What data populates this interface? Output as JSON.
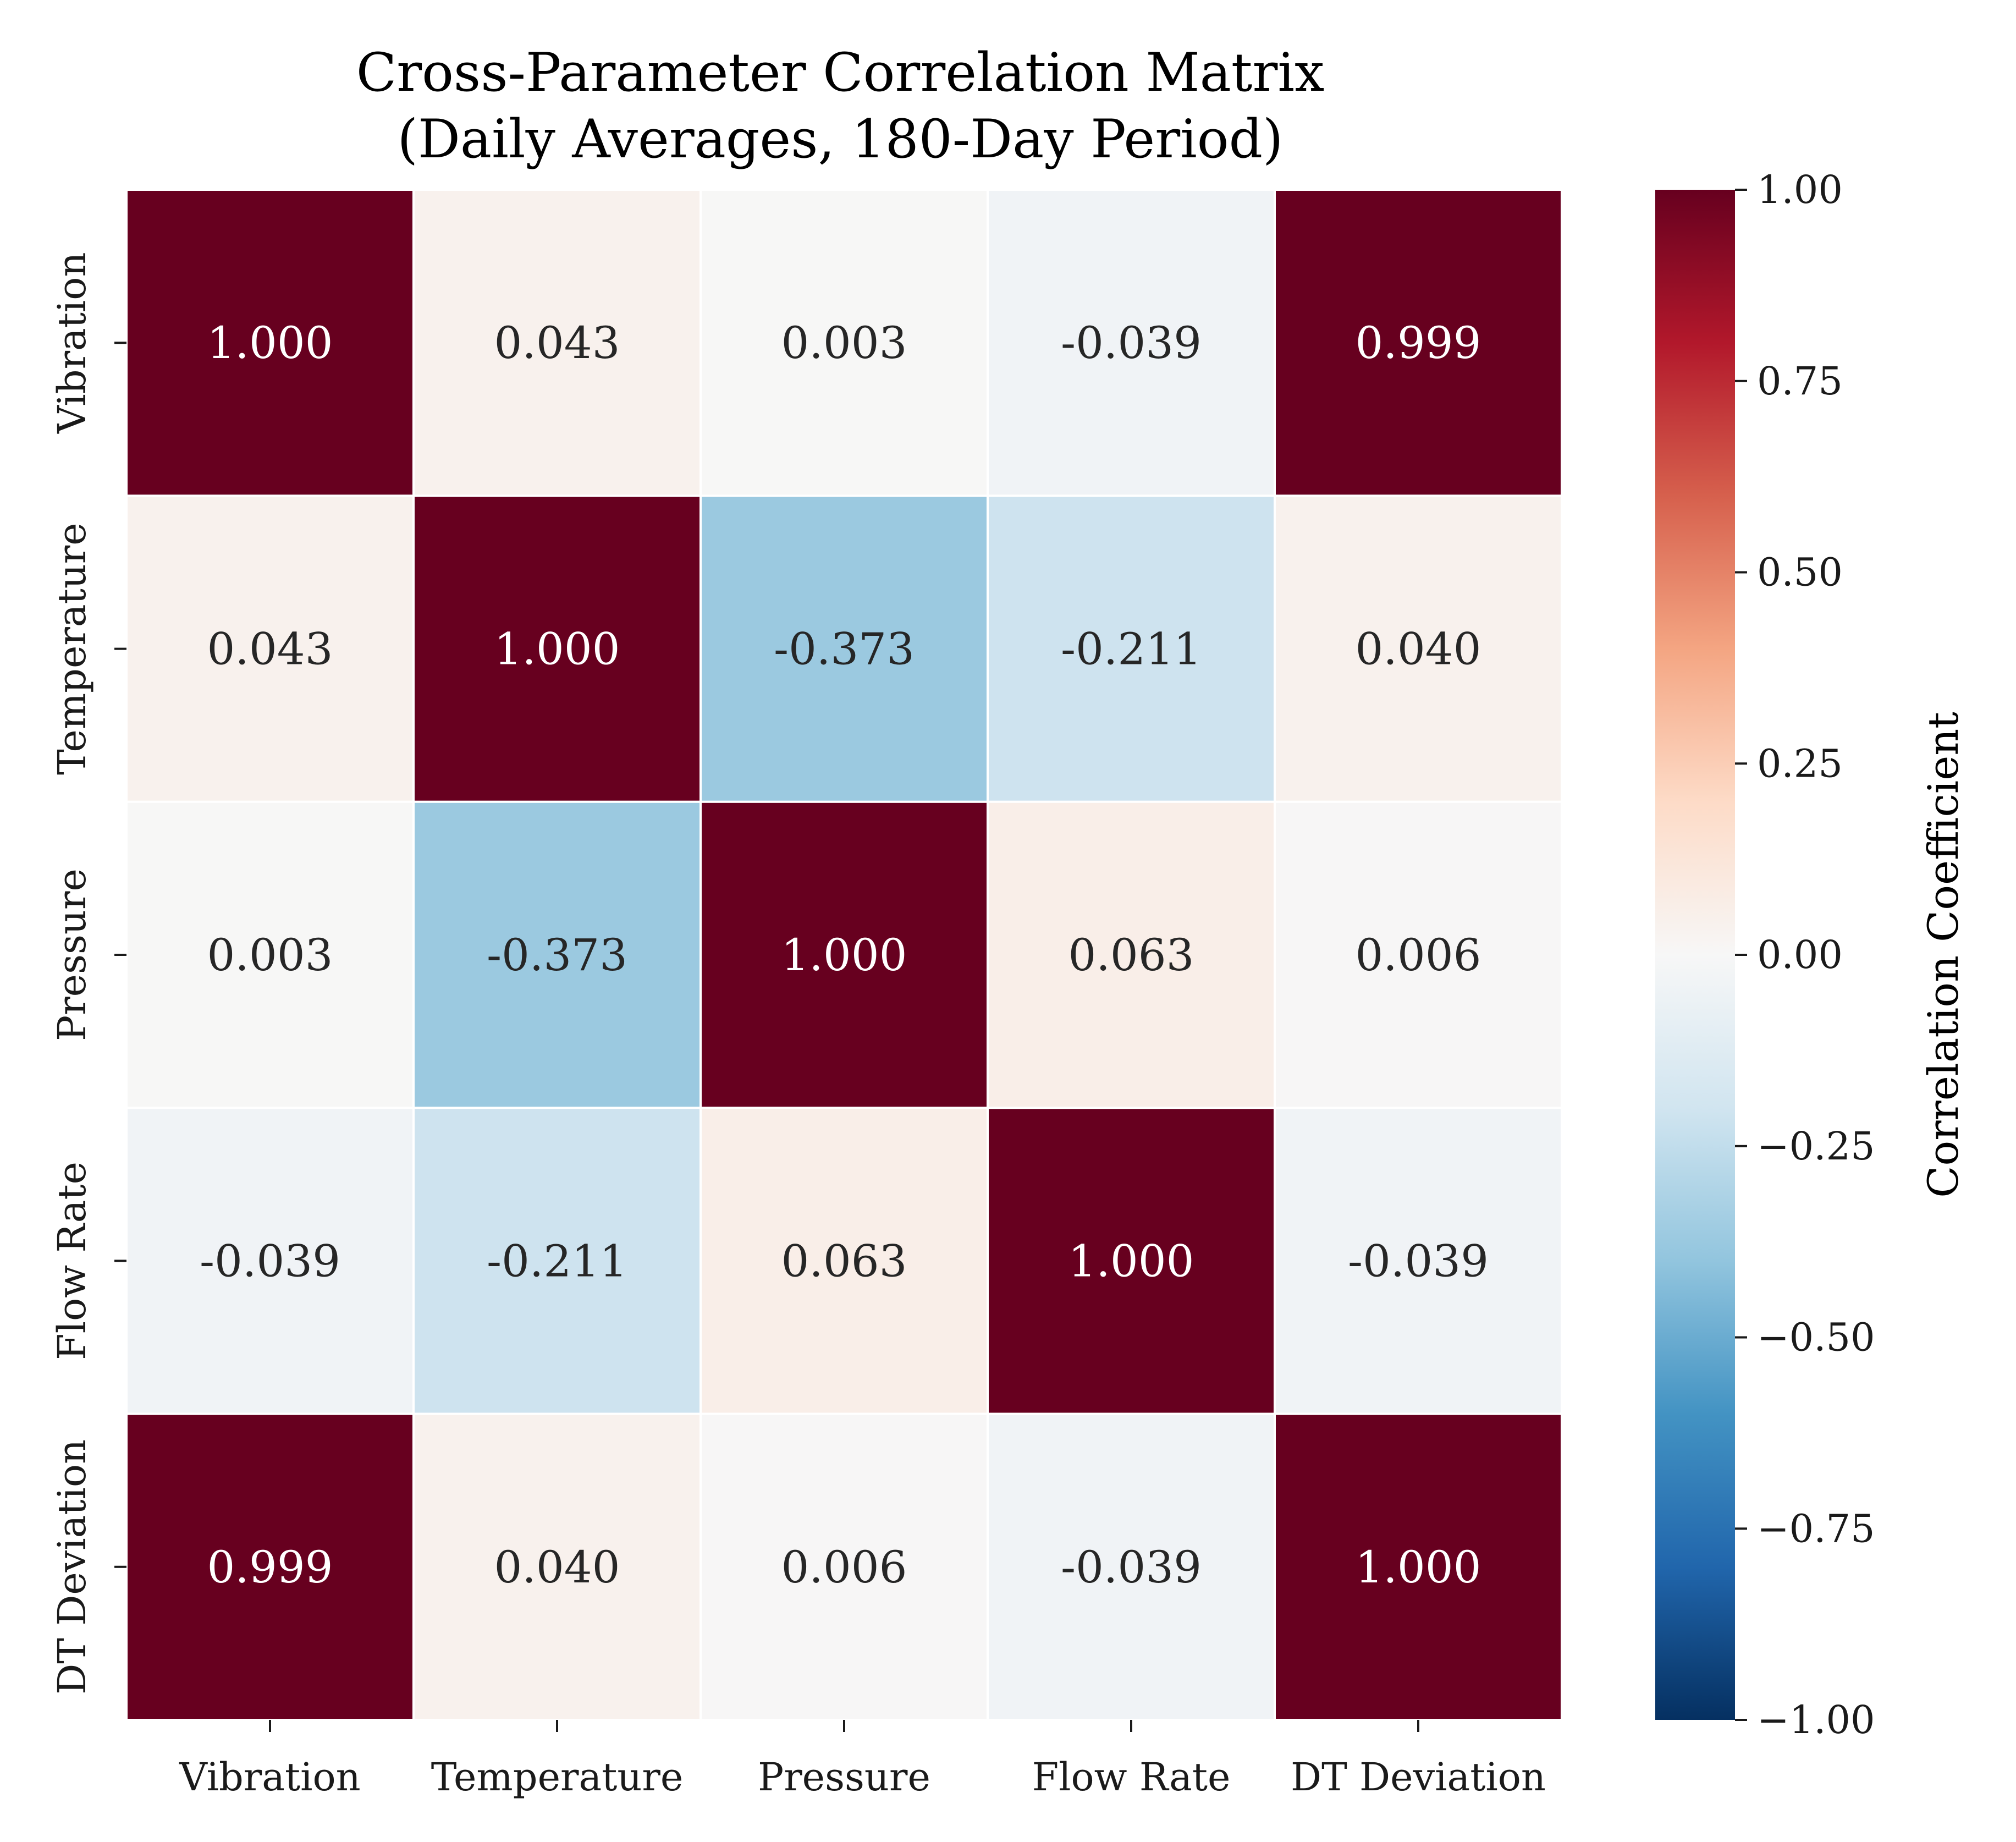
{
  "chart_data": {
    "type": "heatmap",
    "title_lines": [
      "Cross-Parameter Correlation Matrix",
      "(Daily Averages, 180-Day Period)"
    ],
    "row_labels": [
      "Vibration",
      "Temperature",
      "Pressure",
      "Flow Rate",
      "DT Deviation"
    ],
    "col_labels": [
      "Vibration",
      "Temperature",
      "Pressure",
      "Flow Rate",
      "DT Deviation"
    ],
    "values": [
      [
        1.0,
        0.043,
        0.003,
        -0.039,
        0.999
      ],
      [
        0.043,
        1.0,
        -0.373,
        -0.211,
        0.04
      ],
      [
        0.003,
        -0.373,
        1.0,
        0.063,
        0.006
      ],
      [
        -0.039,
        -0.211,
        0.063,
        1.0,
        -0.039
      ],
      [
        0.999,
        0.04,
        0.006,
        -0.039,
        1.0
      ]
    ],
    "cell_text": [
      [
        "1.000",
        "0.043",
        "0.003",
        "-0.039",
        "0.999"
      ],
      [
        "0.043",
        "1.000",
        "-0.373",
        "-0.211",
        "0.040"
      ],
      [
        "0.003",
        "-0.373",
        "1.000",
        "0.063",
        "0.006"
      ],
      [
        "-0.039",
        "-0.211",
        "0.063",
        "1.000",
        "-0.039"
      ],
      [
        "0.999",
        "0.040",
        "0.006",
        "-0.039",
        "1.000"
      ]
    ],
    "colormap": "RdBu_r",
    "vmin": -1.0,
    "vmax": 1.0,
    "colorbar": {
      "label": "Correlation Coefficient",
      "ticks": [
        1.0,
        0.75,
        0.5,
        0.25,
        0.0,
        -0.25,
        -0.5,
        -0.75,
        -1.0
      ],
      "tick_labels": [
        "1.00",
        "0.75",
        "0.50",
        "0.25",
        "0.00",
        "−0.25",
        "−0.50",
        "−0.75",
        "−1.00"
      ]
    },
    "colors": {
      "strong_positive": "#67001f",
      "neutral": "#f7f7f7",
      "strong_negative": "#053061",
      "cell_border": "#ffffff"
    }
  }
}
